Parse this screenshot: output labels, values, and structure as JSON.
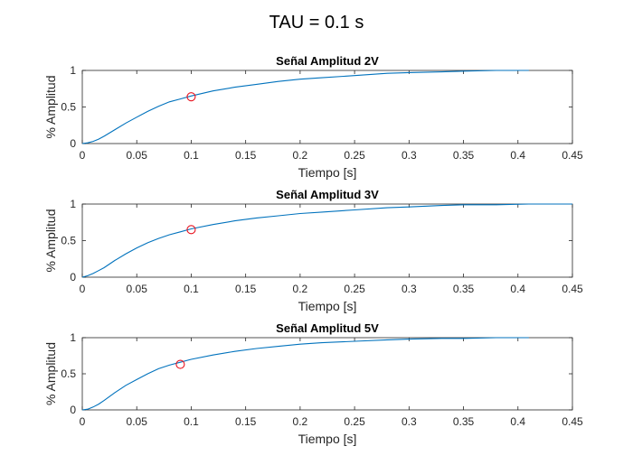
{
  "figure_title": "TAU = 0.1 s",
  "colors": {
    "line": "#0072bd",
    "marker": "#e8121e",
    "axes": "#262626"
  },
  "chart_data": [
    {
      "type": "line",
      "title": "Señal Amplitud 2V",
      "xlabel": "Tiempo [s]",
      "ylabel": "% Amplitud",
      "xlim": [
        0,
        0.45
      ],
      "ylim": [
        0,
        1
      ],
      "xticks": [
        0,
        0.05,
        0.1,
        0.15,
        0.2,
        0.25,
        0.3,
        0.35,
        0.4,
        0.45
      ],
      "xtick_labels": [
        "0",
        "0.05",
        "0.1",
        "0.15",
        "0.2",
        "0.25",
        "0.3",
        "0.35",
        "0.4",
        "0.45"
      ],
      "yticks": [
        0,
        0.5,
        1
      ],
      "ytick_labels": [
        "0",
        "0.5",
        "1"
      ],
      "series": [
        {
          "name": "response",
          "x": [
            0,
            0.005,
            0.01,
            0.015,
            0.02,
            0.03,
            0.04,
            0.05,
            0.06,
            0.07,
            0.08,
            0.09,
            0.1,
            0.12,
            0.14,
            0.16,
            0.18,
            0.2,
            0.22,
            0.25,
            0.28,
            0.3,
            0.33,
            0.35,
            0.38,
            0.41
          ],
          "y": [
            0,
            0.01,
            0.03,
            0.06,
            0.1,
            0.19,
            0.28,
            0.36,
            0.44,
            0.51,
            0.57,
            0.61,
            0.65,
            0.72,
            0.77,
            0.81,
            0.85,
            0.88,
            0.9,
            0.93,
            0.96,
            0.97,
            0.98,
            0.99,
            1.0,
            1.0
          ]
        }
      ],
      "marker": {
        "x": 0.1,
        "y": 0.64
      }
    },
    {
      "type": "line",
      "title": "Señal Amplitud 3V",
      "xlabel": "Tiempo [s]",
      "ylabel": "% Amplitud",
      "xlim": [
        0,
        0.45
      ],
      "ylim": [
        0,
        1
      ],
      "xticks": [
        0,
        0.05,
        0.1,
        0.15,
        0.2,
        0.25,
        0.3,
        0.35,
        0.4,
        0.45
      ],
      "xtick_labels": [
        "0",
        "0.05",
        "0.1",
        "0.15",
        "0.2",
        "0.25",
        "0.3",
        "0.35",
        "0.4",
        "0.45"
      ],
      "yticks": [
        0,
        0.5,
        1
      ],
      "ytick_labels": [
        "0",
        "0.5",
        "1"
      ],
      "series": [
        {
          "name": "response",
          "x": [
            0,
            0.005,
            0.01,
            0.015,
            0.02,
            0.03,
            0.04,
            0.05,
            0.06,
            0.07,
            0.08,
            0.09,
            0.1,
            0.12,
            0.14,
            0.16,
            0.18,
            0.2,
            0.22,
            0.25,
            0.28,
            0.3,
            0.33,
            0.35,
            0.38,
            0.41,
            0.45
          ],
          "y": [
            0,
            0.02,
            0.05,
            0.09,
            0.13,
            0.23,
            0.32,
            0.4,
            0.47,
            0.53,
            0.58,
            0.62,
            0.66,
            0.72,
            0.77,
            0.81,
            0.84,
            0.87,
            0.89,
            0.92,
            0.95,
            0.96,
            0.98,
            0.99,
            0.99,
            1.0,
            1.0
          ]
        }
      ],
      "marker": {
        "x": 0.1,
        "y": 0.65
      }
    },
    {
      "type": "line",
      "title": "Señal Amplitud 5V",
      "xlabel": "Tiempo [s]",
      "ylabel": "% Amplitud",
      "xlim": [
        0,
        0.45
      ],
      "ylim": [
        0,
        1
      ],
      "xticks": [
        0,
        0.05,
        0.1,
        0.15,
        0.2,
        0.25,
        0.3,
        0.35,
        0.4,
        0.45
      ],
      "xtick_labels": [
        "0",
        "0.05",
        "0.1",
        "0.15",
        "0.2",
        "0.25",
        "0.3",
        "0.35",
        "0.4",
        "0.45"
      ],
      "yticks": [
        0,
        0.5,
        1
      ],
      "ytick_labels": [
        "0",
        "0.5",
        "1"
      ],
      "series": [
        {
          "name": "response",
          "x": [
            0,
            0.005,
            0.01,
            0.015,
            0.02,
            0.03,
            0.04,
            0.05,
            0.06,
            0.07,
            0.08,
            0.09,
            0.1,
            0.12,
            0.14,
            0.16,
            0.18,
            0.2,
            0.22,
            0.25,
            0.28,
            0.3,
            0.33,
            0.35,
            0.38,
            0.41
          ],
          "y": [
            0,
            0.01,
            0.04,
            0.08,
            0.13,
            0.24,
            0.34,
            0.42,
            0.5,
            0.57,
            0.62,
            0.66,
            0.7,
            0.76,
            0.81,
            0.85,
            0.88,
            0.91,
            0.93,
            0.95,
            0.97,
            0.98,
            0.99,
            0.99,
            1.0,
            1.0
          ]
        }
      ],
      "marker": {
        "x": 0.09,
        "y": 0.63
      }
    }
  ]
}
